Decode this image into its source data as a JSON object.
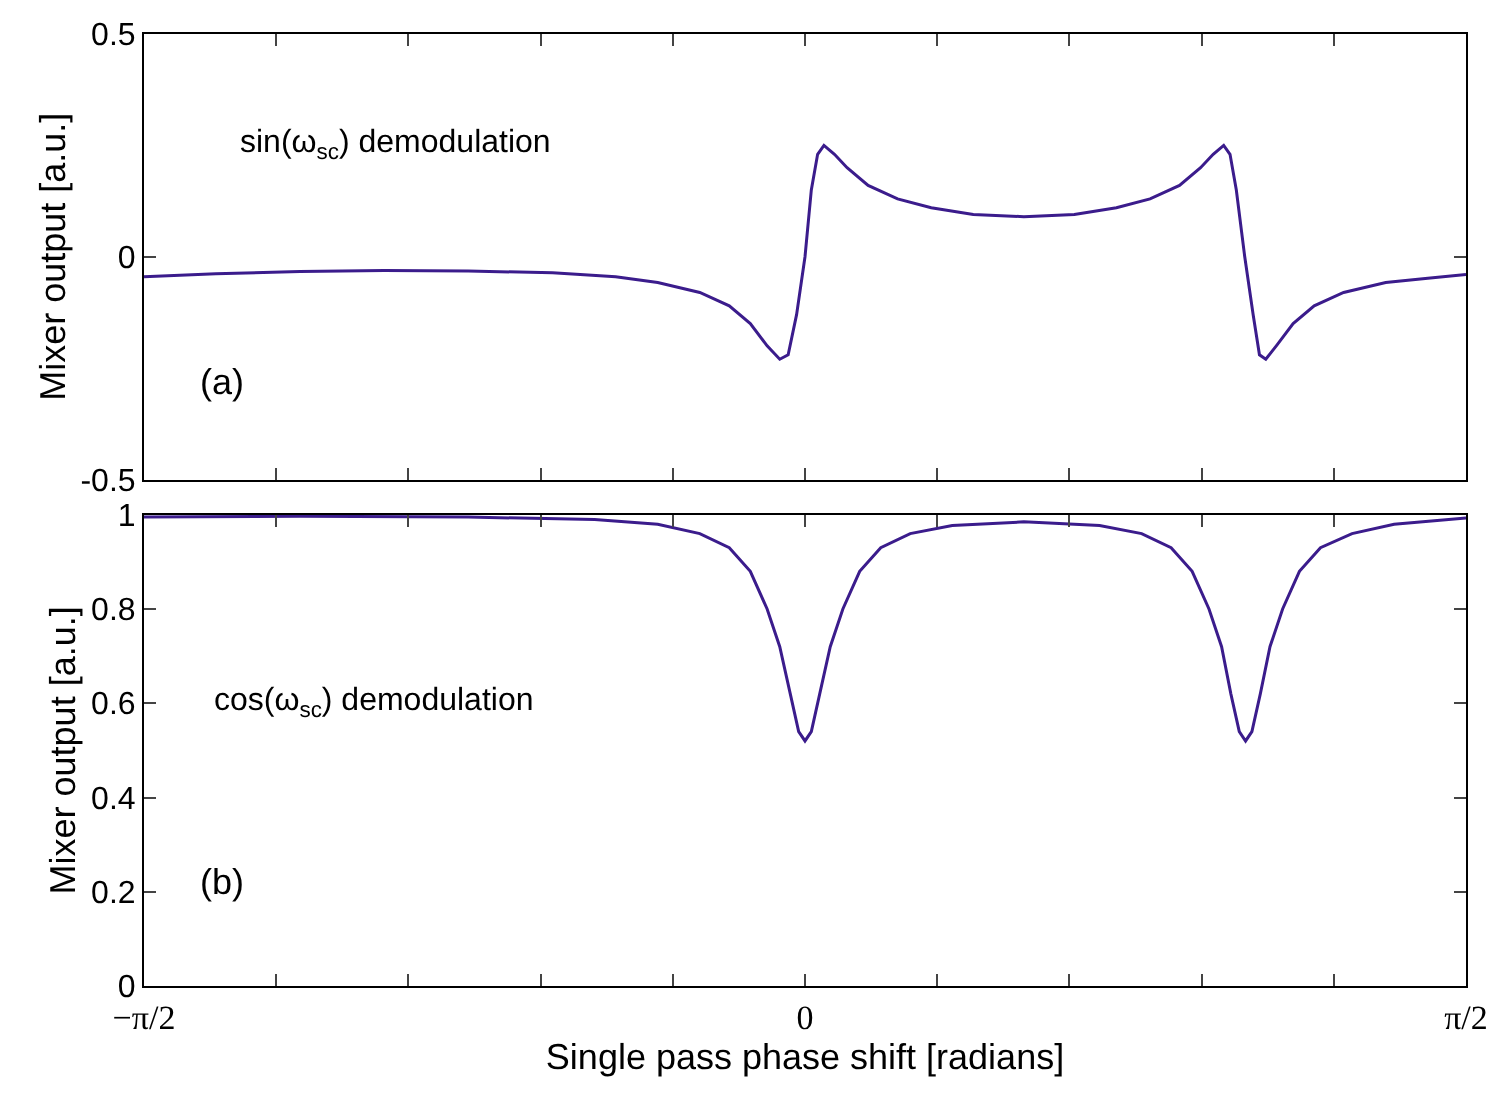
{
  "chart_data": [
    {
      "type": "line",
      "ylabel": "Mixer output [a.u.]",
      "annotations": [
        "sin(ω$_{sc}$) demodulation",
        "(a)"
      ],
      "x": [
        -1.5708,
        -1.4,
        -1.2,
        -1.0,
        -0.8,
        -0.6,
        -0.45,
        -0.35,
        -0.25,
        -0.18,
        -0.13,
        -0.09,
        -0.06,
        -0.04,
        -0.02,
        0.0,
        0.015,
        0.03,
        0.045,
        0.07,
        0.1,
        0.15,
        0.22,
        0.3,
        0.4,
        0.52,
        0.64,
        0.74,
        0.82,
        0.89,
        0.94,
        0.97,
        0.995,
        1.01,
        1.025,
        1.045,
        1.065,
        1.08,
        1.095,
        1.12,
        1.16,
        1.21,
        1.28,
        1.38,
        1.48,
        1.5708
      ],
      "series": [
        {
          "color": "#3b1c8c",
          "values": [
            -0.045,
            -0.038,
            -0.033,
            -0.031,
            -0.032,
            -0.036,
            -0.045,
            -0.058,
            -0.08,
            -0.11,
            -0.15,
            -0.2,
            -0.23,
            -0.22,
            -0.13,
            0.0,
            0.15,
            0.23,
            0.25,
            0.23,
            0.2,
            0.16,
            0.13,
            0.11,
            0.095,
            0.09,
            0.095,
            0.11,
            0.13,
            0.16,
            0.2,
            0.23,
            0.25,
            0.23,
            0.15,
            0.0,
            -0.13,
            -0.22,
            -0.23,
            -0.2,
            -0.15,
            -0.11,
            -0.08,
            -0.058,
            -0.048,
            -0.04
          ]
        }
      ],
      "xlim": [
        -1.5708,
        1.5708
      ],
      "xticks": [
        {
          "value": -1.5708,
          "label": null
        },
        {
          "value": -1.2566,
          "label": null
        },
        {
          "value": -0.9425,
          "label": null
        },
        {
          "value": -0.6283,
          "label": null
        },
        {
          "value": -0.3142,
          "label": null
        },
        {
          "value": 0,
          "label": null
        },
        {
          "value": 0.3142,
          "label": null
        },
        {
          "value": 0.6283,
          "label": null
        },
        {
          "value": 0.9425,
          "label": null
        },
        {
          "value": 1.2566,
          "label": null
        },
        {
          "value": 1.5708,
          "label": null
        }
      ],
      "ylim": [
        -0.5,
        0.5
      ],
      "yticks": [
        -0.5,
        0,
        0.5
      ],
      "tick_labels": "y",
      "marker": "none",
      "line_style": "solid"
    },
    {
      "type": "line",
      "xlabel": "Single pass phase shift [radians]",
      "ylabel": "Mixer output [a.u.]",
      "annotations": [
        "cos(ω$_{sc}$) demodulation",
        "(b)"
      ],
      "x": [
        -1.5708,
        -1.2,
        -0.8,
        -0.5,
        -0.35,
        -0.25,
        -0.18,
        -0.13,
        -0.09,
        -0.06,
        -0.035,
        -0.015,
        0,
        0.015,
        0.035,
        0.06,
        0.09,
        0.13,
        0.18,
        0.25,
        0.35,
        0.52,
        0.7,
        0.8,
        0.87,
        0.92,
        0.96,
        0.99,
        1.012,
        1.032,
        1.047,
        1.062,
        1.082,
        1.105,
        1.135,
        1.175,
        1.225,
        1.3,
        1.4,
        1.5708
      ],
      "series": [
        {
          "color": "#3b1c8c",
          "values": [
            0.995,
            0.997,
            0.995,
            0.99,
            0.98,
            0.96,
            0.93,
            0.88,
            0.8,
            0.72,
            0.62,
            0.54,
            0.52,
            0.54,
            0.62,
            0.72,
            0.8,
            0.88,
            0.93,
            0.96,
            0.977,
            0.985,
            0.977,
            0.96,
            0.93,
            0.88,
            0.8,
            0.72,
            0.62,
            0.54,
            0.52,
            0.54,
            0.62,
            0.72,
            0.8,
            0.88,
            0.93,
            0.96,
            0.98,
            0.993
          ]
        }
      ],
      "xlim": [
        -1.5708,
        1.5708
      ],
      "xticks": [
        {
          "value": -1.5708,
          "label": "−π/2"
        },
        {
          "value": -1.2566,
          "label": null
        },
        {
          "value": -0.9425,
          "label": null
        },
        {
          "value": -0.6283,
          "label": null
        },
        {
          "value": -0.3142,
          "label": null
        },
        {
          "value": 0,
          "label": "0"
        },
        {
          "value": 0.3142,
          "label": null
        },
        {
          "value": 0.6283,
          "label": null
        },
        {
          "value": 0.9425,
          "label": null
        },
        {
          "value": 1.2566,
          "label": null
        },
        {
          "value": 1.5708,
          "label": "π/2"
        }
      ],
      "ylim": [
        0,
        1
      ],
      "yticks": [
        0,
        0.2,
        0.4,
        0.6,
        0.8,
        1
      ],
      "marker": "none",
      "line_style": "solid"
    }
  ]
}
